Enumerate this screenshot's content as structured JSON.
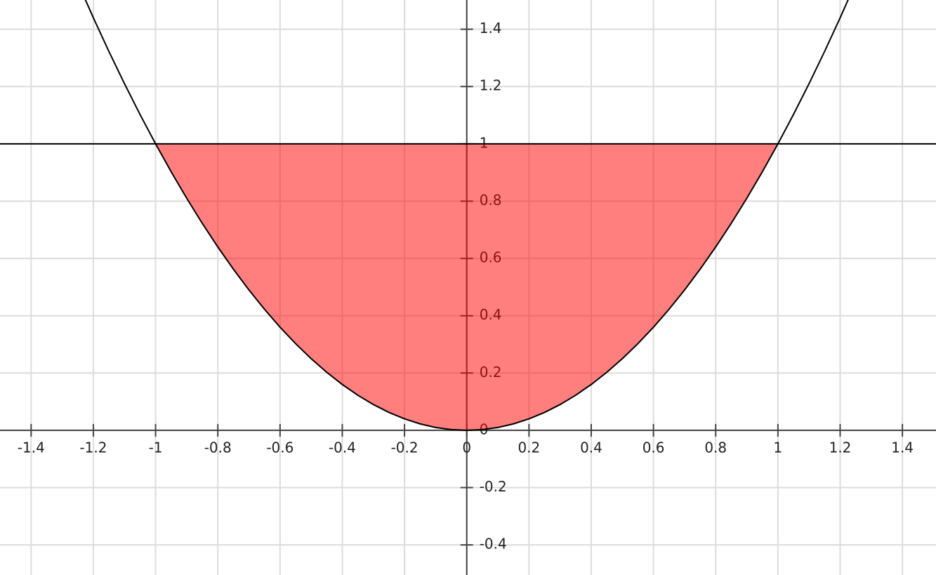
{
  "chart_data": {
    "type": "function-plot",
    "xlim": [
      -1.5,
      1.508
    ],
    "ylim": [
      -0.505,
      1.502
    ],
    "xticks": [
      -1.4,
      -1.2,
      -1,
      -0.8,
      -0.6,
      -0.4,
      -0.2,
      0,
      0.2,
      0.4,
      0.6,
      0.8,
      1,
      1.2,
      1.4
    ],
    "yticks": [
      -0.4,
      -0.2,
      0,
      0.2,
      0.4,
      0.6,
      0.8,
      1,
      1.2,
      1.4
    ],
    "grid": true,
    "series": [
      {
        "color": "#000000",
        "x": [
          -1.25,
          -1.2,
          -1.15,
          -1.1,
          -1.05,
          -1,
          -0.95,
          -0.9,
          -0.85,
          -0.8,
          -0.75,
          -0.7,
          -0.65,
          -0.6,
          -0.55,
          -0.5,
          -0.45,
          -0.4,
          -0.35,
          -0.3,
          -0.25,
          -0.2,
          -0.15,
          -0.1,
          -0.05,
          0,
          0.05,
          0.1,
          0.15,
          0.2,
          0.25,
          0.3,
          0.35,
          0.4,
          0.45,
          0.5,
          0.55,
          0.6,
          0.65,
          0.7,
          0.75,
          0.8,
          0.85,
          0.9,
          0.95,
          1,
          1.05,
          1.1,
          1.15,
          1.2,
          1.25
        ],
        "values": [
          1.5625,
          1.44,
          1.3225,
          1.21,
          1.1025,
          1,
          0.9025,
          0.81,
          0.7225,
          0.64,
          0.5625,
          0.49,
          0.4225,
          0.36,
          0.3025,
          0.25,
          0.2025,
          0.16,
          0.1225,
          0.09,
          0.0625,
          0.04,
          0.0225,
          0.01,
          0.0025,
          0,
          0.0025,
          0.01,
          0.0225,
          0.04,
          0.0625,
          0.09,
          0.1225,
          0.16,
          0.2025,
          0.25,
          0.3025,
          0.36,
          0.4225,
          0.49,
          0.5625,
          0.64,
          0.7225,
          0.81,
          0.9025,
          1,
          1.1025,
          1.21,
          1.3225,
          1.44,
          1.5625
        ]
      },
      {
        "color": "#000000",
        "x": [
          -1.5,
          1.508
        ],
        "values": [
          1,
          1
        ]
      }
    ],
    "fill": {
      "color": "#ff0000",
      "opacity": 0.5,
      "x": [
        -1,
        1
      ]
    }
  }
}
